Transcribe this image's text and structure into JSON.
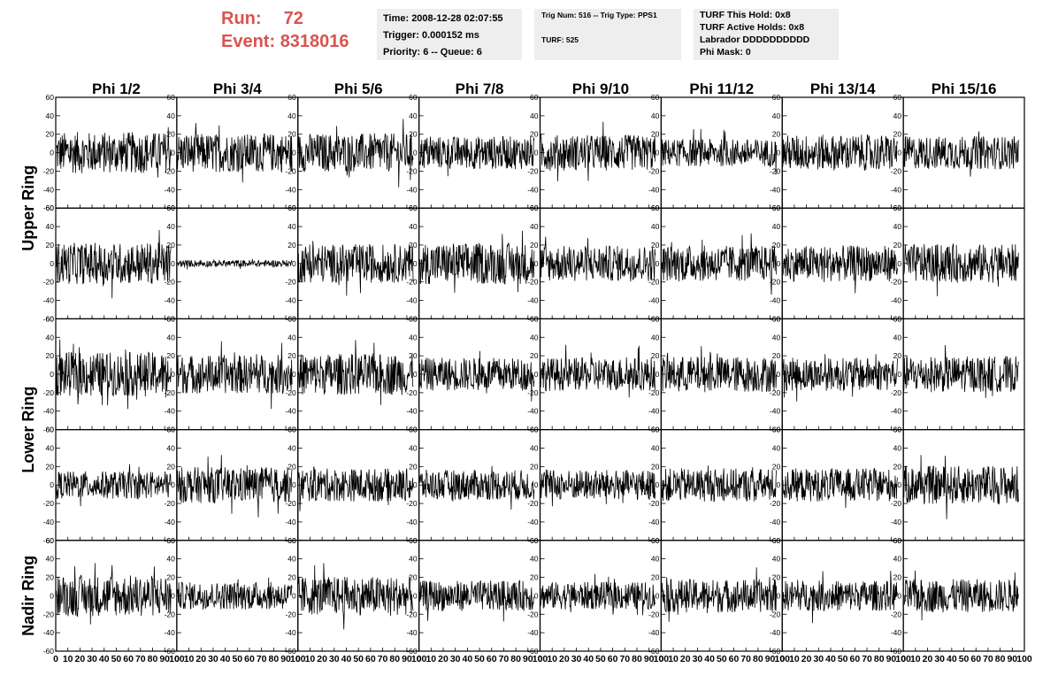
{
  "header": {
    "run_label": "Run:",
    "run_value": "72",
    "event_label": "Event:",
    "event_value": "8318016",
    "time": "Time: 2008-12-28 02:07:55",
    "trigger": "Trigger: 0.000152 ms",
    "priority": "Priority: 6 -- Queue: 6",
    "trig_num": "Trig Num: 516 -- Trig Type: PPS1",
    "turf": "TURF: 525",
    "turf_this_hold": "TURF This Hold: 0x8",
    "turf_active_holds": "TURF Active Holds: 0x8",
    "labrador": "Labrador DDDDDDDDDD",
    "phi_mask": "Phi Mask: 0"
  },
  "chart_data": {
    "type": "line",
    "columns": [
      "Phi 1/2",
      "Phi 3/4",
      "Phi 5/6",
      "Phi 7/8",
      "Phi 9/10",
      "Phi 11/12",
      "Phi 13/14",
      "Phi 15/16"
    ],
    "rows": [
      "Upper Ring",
      "Upper Ring",
      "Lower Ring",
      "Lower Ring",
      "Nadir Ring"
    ],
    "row_labels": [
      "Upper Ring",
      "Lower Ring",
      "Nadir Ring"
    ],
    "xlim": [
      0,
      100
    ],
    "ylim": [
      -60,
      60
    ],
    "x_ticks": [
      0,
      10,
      20,
      30,
      40,
      50,
      60,
      70,
      80,
      90,
      100
    ],
    "y_ticks": [
      -60,
      -40,
      -20,
      0,
      20,
      40,
      60
    ],
    "n_samples": 256,
    "amplitude": [
      [
        15,
        14,
        14,
        12,
        13,
        10,
        13,
        12
      ],
      [
        15,
        2.5,
        14,
        15,
        13,
        13,
        13,
        14
      ],
      [
        16,
        14,
        15,
        12,
        12,
        13,
        12,
        13
      ],
      [
        10,
        13,
        12,
        11,
        11,
        12,
        12,
        14
      ],
      [
        15,
        10,
        14,
        11,
        10,
        12,
        11,
        12
      ]
    ],
    "grid": false,
    "legend": "none"
  }
}
